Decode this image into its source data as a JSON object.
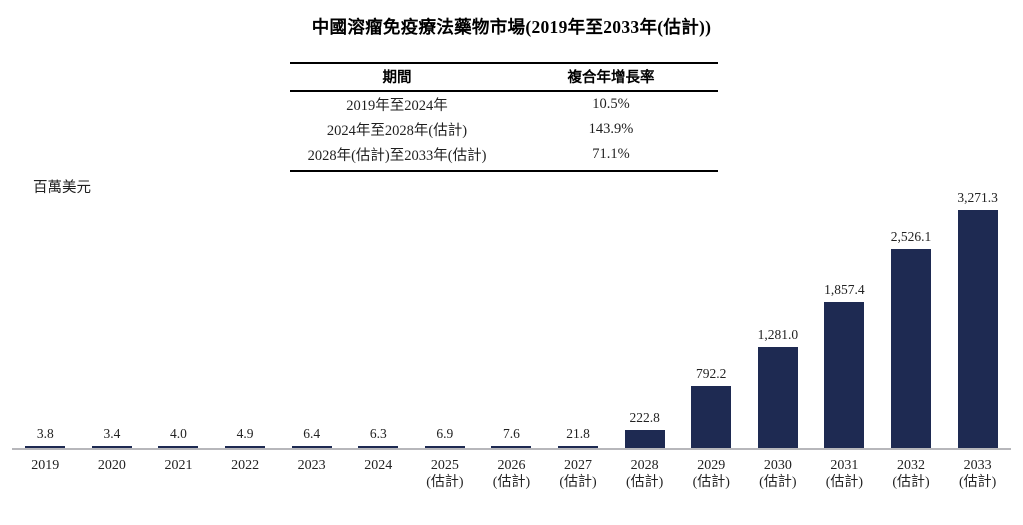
{
  "title": "中國溶瘤免疫療法藥物市場(2019年至2033年(估計))",
  "cagr_table": {
    "headers": [
      "期間",
      "複合年增長率"
    ],
    "rows": [
      [
        "2019年至2024年",
        "10.5%"
      ],
      [
        "2024年至2028年(估計)",
        "143.9%"
      ],
      [
        "2028年(估計)至2033年(估計)",
        "71.1%"
      ]
    ]
  },
  "chart_data": {
    "type": "bar",
    "title": "中國溶瘤免疫療法藥物市場(2019年至2033年(估計))",
    "ylabel": "百萬美元",
    "xlabel": "",
    "categories": [
      "2019",
      "2020",
      "2021",
      "2022",
      "2023",
      "2024",
      "2025",
      "2026",
      "2027",
      "2028",
      "2029",
      "2030",
      "2031",
      "2032",
      "2033"
    ],
    "values": [
      3.8,
      3.4,
      4.0,
      4.9,
      6.4,
      6.3,
      6.9,
      7.6,
      21.8,
      222.8,
      792.2,
      1281.0,
      1857.4,
      2526.1,
      3271.3
    ],
    "value_labels": [
      "3.8",
      "3.4",
      "4.0",
      "4.9",
      "6.4",
      "6.3",
      "6.9",
      "7.6",
      "21.8",
      "222.8",
      "792.2",
      "1,281.0",
      "1,857.4",
      "2,526.1",
      "3,271.3"
    ],
    "estimated_flags": [
      false,
      false,
      false,
      false,
      false,
      false,
      true,
      true,
      true,
      true,
      true,
      true,
      true,
      true,
      true
    ],
    "estimate_label": "(估計)",
    "ylim": [
      0,
      3271.3
    ],
    "grid": false,
    "legend": false,
    "bar_color": "#1e2a52",
    "axis_line_color": "#b7b7bb"
  }
}
